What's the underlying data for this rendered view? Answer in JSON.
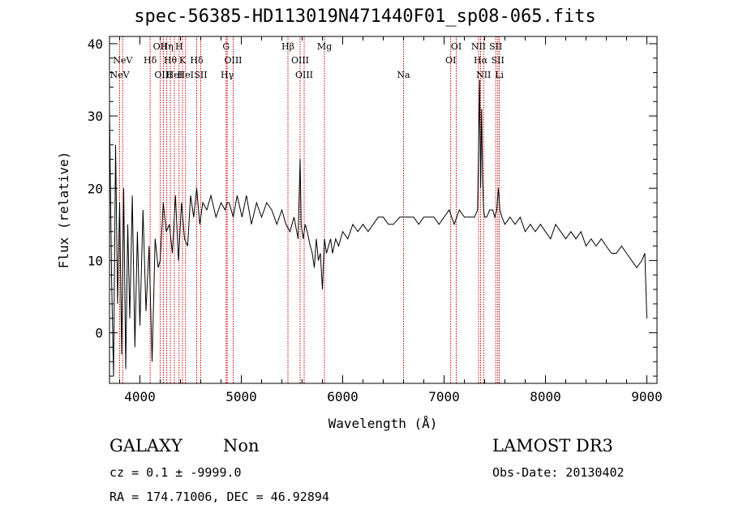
{
  "chart_data": {
    "type": "line",
    "title": "spec-56385-HD113019N471440F01_sp08-065.fits",
    "xlabel": "Wavelength (Å)",
    "ylabel": "Flux (relative)",
    "xlim": [
      3700,
      9100
    ],
    "ylim": [
      -7,
      41
    ],
    "xticks": [
      4000,
      5000,
      6000,
      7000,
      8000,
      9000
    ],
    "yticks": [
      0,
      10,
      20,
      30,
      40
    ],
    "grid": false,
    "series": [
      {
        "x": [
          3700,
          3720,
          3740,
          3760,
          3780,
          3800,
          3820,
          3840,
          3860,
          3880,
          3900,
          3925,
          3950,
          3975,
          4000,
          4030,
          4060,
          4090,
          4120,
          4150,
          4180,
          4200,
          4230,
          4260,
          4290,
          4320,
          4350,
          4380,
          4410,
          4440,
          4470,
          4500,
          4530,
          4560,
          4590,
          4620,
          4660,
          4700,
          4750,
          4800,
          4840,
          4861,
          4880,
          4920,
          4959,
          5007,
          5050,
          5100,
          5150,
          5200,
          5250,
          5300,
          5350,
          5400,
          5440,
          5480,
          5520,
          5560,
          5580,
          5590,
          5610,
          5630,
          5650,
          5680,
          5700,
          5720,
          5740,
          5760,
          5780,
          5800,
          5820,
          5840,
          5860,
          5880,
          5900,
          5930,
          5960,
          6000,
          6050,
          6100,
          6150,
          6200,
          6250,
          6300,
          6350,
          6400,
          6450,
          6500,
          6563,
          6600,
          6650,
          6700,
          6750,
          6800,
          6850,
          6900,
          6950,
          7000,
          7050,
          7100,
          7150,
          7200,
          7250,
          7300,
          7330,
          7350,
          7360,
          7370,
          7380,
          7390,
          7400,
          7420,
          7450,
          7480,
          7500,
          7520,
          7535,
          7550,
          7570,
          7600,
          7650,
          7700,
          7750,
          7800,
          7850,
          7900,
          7950,
          8000,
          8050,
          8100,
          8150,
          8200,
          8250,
          8300,
          8350,
          8400,
          8450,
          8500,
          8550,
          8600,
          8650,
          8700,
          8750,
          8800,
          8850,
          8900,
          8950,
          8980,
          9000
        ],
        "y": [
          31,
          8,
          -6,
          26,
          4,
          18,
          -3,
          20,
          -5,
          15,
          2,
          19,
          -2,
          14,
          1,
          17,
          3,
          12,
          -4,
          13,
          9,
          10,
          18,
          14,
          15,
          11,
          19,
          10,
          18,
          13,
          12,
          19,
          16,
          20,
          15,
          18,
          17,
          19,
          16,
          18,
          17,
          18,
          18,
          16,
          19,
          16,
          19,
          15,
          18,
          16,
          18,
          17,
          15,
          17,
          15,
          14,
          16,
          13,
          24,
          15,
          13,
          15,
          14,
          12,
          11,
          9,
          13,
          10,
          11,
          6,
          13,
          11,
          12,
          13,
          11,
          13,
          12,
          14,
          13,
          15,
          14,
          15,
          14,
          15,
          16,
          16,
          15,
          15,
          16,
          16,
          16,
          16,
          15,
          16,
          16,
          16,
          15,
          16,
          17,
          15,
          17,
          16,
          16,
          16,
          17,
          35,
          20,
          31,
          21,
          17,
          16,
          16,
          17,
          17,
          16,
          17,
          20,
          17,
          16,
          15,
          16,
          15,
          16,
          14,
          15,
          14,
          15,
          14,
          13,
          15,
          14,
          13,
          14,
          13,
          14,
          12,
          13,
          12,
          13,
          12,
          11,
          11,
          12,
          11,
          10,
          9,
          10,
          11,
          2
        ]
      }
    ],
    "line_markers": [
      {
        "wavelength": 3800,
        "label": "NeV",
        "row": 3
      },
      {
        "wavelength": 3830,
        "label": "NeV",
        "row": 2
      },
      {
        "wavelength": 4101,
        "label": "Hδ",
        "row": 2
      },
      {
        "wavelength": 4200,
        "label": "OII",
        "row": 1
      },
      {
        "wavelength": 4231,
        "label": "OIII",
        "row": 3
      },
      {
        "wavelength": 4265,
        "label": "Hη",
        "row": 1
      },
      {
        "wavelength": 4300,
        "label": "Hθ",
        "row": 2
      },
      {
        "wavelength": 4340,
        "label": "HeI",
        "row": 3
      },
      {
        "wavelength": 4386,
        "label": "H",
        "row": 1
      },
      {
        "wavelength": 4420,
        "label": "K",
        "row": 2
      },
      {
        "wavelength": 4450,
        "label": "HeI",
        "row": 3
      },
      {
        "wavelength": 4560,
        "label": "Hδ",
        "row": 2
      },
      {
        "wavelength": 4600,
        "label": "SII",
        "row": 3
      },
      {
        "wavelength": 4850,
        "label": "G",
        "row": 1
      },
      {
        "wavelength": 4861,
        "label": "Hγ",
        "row": 3
      },
      {
        "wavelength": 4920,
        "label": "OIII",
        "row": 2
      },
      {
        "wavelength": 5460,
        "label": "Hβ",
        "row": 1
      },
      {
        "wavelength": 5580,
        "label": "OIII",
        "row": 2
      },
      {
        "wavelength": 5620,
        "label": "OIII",
        "row": 3
      },
      {
        "wavelength": 5820,
        "label": "Mg",
        "row": 1
      },
      {
        "wavelength": 6600,
        "label": "Na",
        "row": 3
      },
      {
        "wavelength": 7065,
        "label": "OI",
        "row": 2
      },
      {
        "wavelength": 7120,
        "label": "OI",
        "row": 1
      },
      {
        "wavelength": 7340,
        "label": "NII",
        "row": 1
      },
      {
        "wavelength": 7360,
        "label": "Hα",
        "row": 2
      },
      {
        "wavelength": 7390,
        "label": "NII",
        "row": 3
      },
      {
        "wavelength": 7510,
        "label": "SII",
        "row": 1
      },
      {
        "wavelength": 7530,
        "label": "SII",
        "row": 2
      },
      {
        "wavelength": 7545,
        "label": "Li",
        "row": 3
      }
    ]
  },
  "info": {
    "class": "GALAXY",
    "subclass": "Non",
    "cz": "cz = 0.1 ± -9999.0",
    "coords": "RA = 174.71006, DEC =  46.92894",
    "survey": "LAMOST DR3",
    "obsdate": "Obs-Date: 20130402"
  },
  "colors": {
    "marker_line": "#cc0000",
    "spectrum": "#000000"
  }
}
